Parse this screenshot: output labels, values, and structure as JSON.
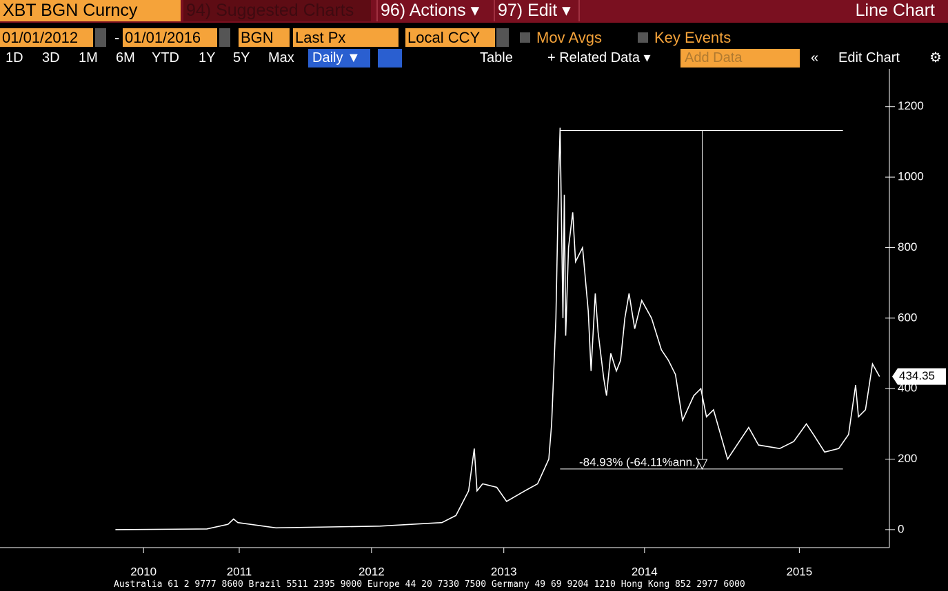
{
  "toolbar": {
    "security": "XBT BGN Curncy",
    "suggested": "94) Suggested Charts",
    "actions": "96) Actions ▾",
    "edit": "97) Edit ▾",
    "view": "Line Chart",
    "start_date": "01/01/2012",
    "end_date": "01/01/2016",
    "source": "BGN",
    "field": "Last Px",
    "currency": "Local CCY",
    "mov_avgs": "Mov Avgs",
    "key_events": "Key Events",
    "ranges": [
      "1D",
      "3D",
      "1M",
      "6M",
      "YTD",
      "1Y",
      "5Y",
      "Max"
    ],
    "period": "Daily ▼",
    "table": "Table",
    "related": "+ Related Data ▾",
    "add_data": "Add Data",
    "edit_chart": "Edit Chart"
  },
  "chart_data": {
    "type": "line",
    "color": "#ffffff",
    "x": [
      2010.57,
      2011.22,
      2011.37,
      2011.41,
      2011.44,
      2011.71,
      2012.45,
      2012.89,
      2012.99,
      2013.08,
      2013.12,
      2013.14,
      2013.18,
      2013.28,
      2013.35,
      2013.48,
      2013.57,
      2013.65,
      2013.67,
      2013.7,
      2013.72,
      2013.73,
      2013.75,
      2013.76,
      2013.77,
      2013.79,
      2013.82,
      2013.84,
      2013.89,
      2013.93,
      2013.95,
      2013.98,
      2014.0,
      2014.04,
      2014.06,
      2014.09,
      2014.13,
      2014.16,
      2014.19,
      2014.22,
      2014.26,
      2014.31,
      2014.38,
      2014.45,
      2014.5,
      2014.55,
      2014.6,
      2014.68,
      2014.73,
      2014.77,
      2014.82,
      2014.87,
      2014.92,
      2014.97,
      2015.07,
      2015.14,
      2015.29,
      2015.39,
      2015.48,
      2015.53,
      2015.61,
      2015.71,
      2015.78,
      2015.83,
      2015.85,
      2015.9,
      2015.95,
      2016.0
    ],
    "values": [
      0,
      2,
      15,
      30,
      20,
      5,
      10,
      20,
      40,
      110,
      230,
      110,
      130,
      120,
      80,
      110,
      130,
      200,
      300,
      600,
      1000,
      1140,
      600,
      950,
      550,
      800,
      900,
      760,
      800,
      620,
      450,
      670,
      560,
      430,
      380,
      500,
      450,
      480,
      600,
      670,
      570,
      650,
      600,
      510,
      480,
      440,
      310,
      380,
      400,
      320,
      340,
      270,
      200,
      230,
      290,
      240,
      230,
      250,
      300,
      270,
      220,
      230,
      270,
      410,
      320,
      340,
      470,
      434.35
    ],
    "xlim": [
      2009.75,
      2016.07
    ],
    "xticks": [
      {
        "value": 2010.77,
        "label": "2010"
      },
      {
        "value": 2011.45,
        "label": "2011"
      },
      {
        "value": 2012.39,
        "label": "2012"
      },
      {
        "value": 2013.33,
        "label": "2013"
      },
      {
        "value": 2014.33,
        "label": "2014"
      },
      {
        "value": 2015.43,
        "label": "2015"
      }
    ],
    "ylim": [
      -51,
      1307
    ],
    "yticks": [
      0,
      200,
      400,
      600,
      800,
      1000,
      1200
    ],
    "measure": {
      "label": "-84.93% (-64.11%ann.)",
      "x_start": 2013.73,
      "x_end": 2015.74,
      "x_arrow": 2014.74,
      "high": 1132,
      "low": 172
    }
  },
  "footer": "Australia 61 2 9777 8600 Brazil 5511 2395 9000 Europe 44 20 7330 7500 Germany 49 69 9204 1210 Hong Kong 852 2977 6000"
}
